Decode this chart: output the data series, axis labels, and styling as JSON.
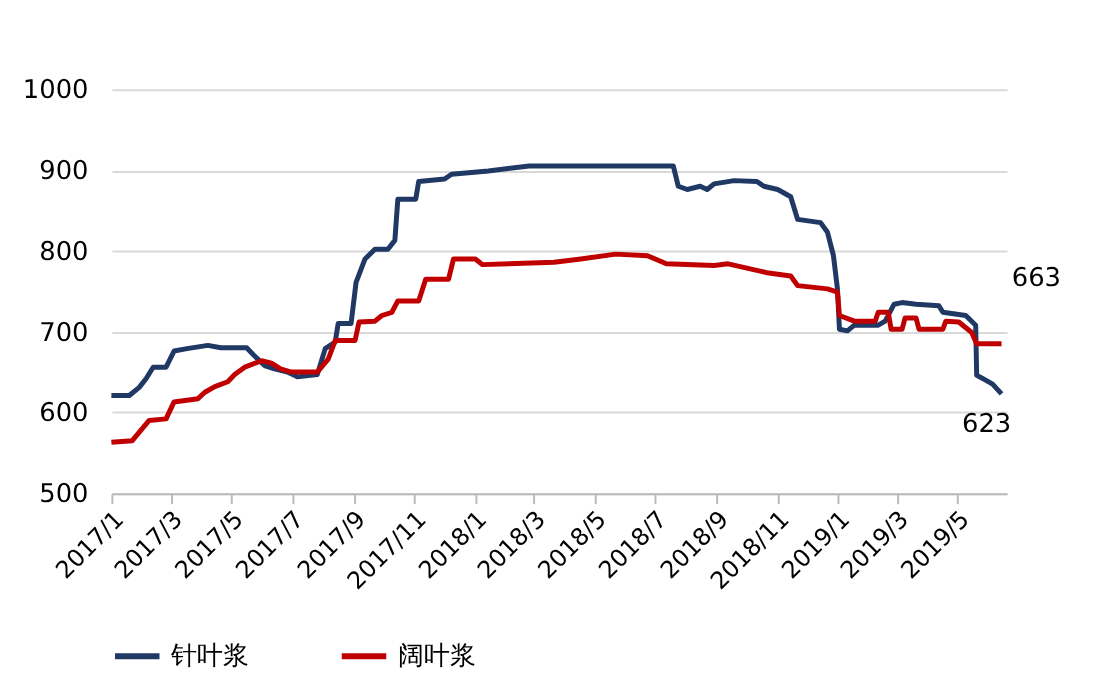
{
  "chart_data": {
    "type": "line",
    "x": [
      "2017-01-01",
      "2017-01-19",
      "2017-01-29",
      "2017-02-05",
      "2017-02-12",
      "2017-02-25",
      "2017-03-05",
      "2017-03-18",
      "2017-04-08",
      "2017-04-21",
      "2017-05-17",
      "2017-05-24",
      "2017-06-04",
      "2017-06-14",
      "2017-06-27",
      "2017-07-07",
      "2017-07-27",
      "2017-08-04",
      "2017-08-14",
      "2017-08-17",
      "2017-08-30",
      "2017-09-04",
      "2017-09-13",
      "2017-09-23",
      "2017-10-06",
      "2017-10-13",
      "2017-10-16",
      "2017-11-03",
      "2017-11-06",
      "2017-12-02",
      "2017-12-09",
      "2018-01-15",
      "2018-02-25",
      "2018-07-20",
      "2018-07-25",
      "2018-08-03",
      "2018-08-16",
      "2018-08-23",
      "2018-08-30",
      "2018-09-19",
      "2018-10-12",
      "2018-10-19",
      "2018-11-02",
      "2018-11-15",
      "2018-11-22",
      "2018-12-15",
      "2018-12-22",
      "2018-12-28",
      "2019-01-01",
      "2019-01-03",
      "2019-01-11",
      "2019-01-18",
      "2019-02-11",
      "2019-02-18",
      "2019-02-27",
      "2019-03-07",
      "2019-03-21",
      "2019-04-13",
      "2019-04-17",
      "2019-05-10",
      "2019-05-20",
      "2019-05-21",
      "2019-05-30",
      "2019-06-06",
      "2019-06-15"
    ],
    "series": [
      {
        "name": "针叶浆",
        "color": "#1f3864",
        "values": [
          621,
          621,
          631,
          642,
          656,
          656,
          676,
          679,
          683,
          680,
          680,
          671,
          658,
          654,
          650,
          644,
          647,
          679,
          687,
          710,
          710,
          761,
          790,
          802,
          802,
          813,
          864,
          864,
          886,
          889,
          895,
          899,
          905,
          905,
          880,
          876,
          880,
          876,
          883,
          887,
          886,
          880,
          876,
          867,
          839,
          835,
          823,
          794,
          753,
          703,
          701,
          708,
          708,
          713,
          734,
          736,
          734,
          732,
          724,
          720,
          708,
          646,
          640,
          635,
          623
        ]
      },
      {
        "name": "阔叶浆",
        "color": "#c00000",
        "x": [
          "2017-01-01",
          "2017-01-22",
          "2017-02-01",
          "2017-02-08",
          "2017-02-25",
          "2017-03-05",
          "2017-03-29",
          "2017-04-05",
          "2017-04-15",
          "2017-04-28",
          "2017-05-05",
          "2017-05-15",
          "2017-06-01",
          "2017-06-11",
          "2017-06-20",
          "2017-07-01",
          "2017-07-27",
          "2017-08-07",
          "2017-08-14",
          "2017-09-03",
          "2017-09-07",
          "2017-09-23",
          "2017-09-30",
          "2017-10-10",
          "2017-10-16",
          "2017-11-06",
          "2017-11-13",
          "2017-12-06",
          "2017-12-11",
          "2018-01-02",
          "2018-01-09",
          "2018-03-22",
          "2018-04-18",
          "2018-05-23",
          "2018-06-24",
          "2018-07-13",
          "2018-08-30",
          "2018-09-13",
          "2018-10-22",
          "2018-11-15",
          "2018-11-22",
          "2018-12-22",
          "2019-01-01",
          "2019-01-03",
          "2019-01-18",
          "2019-02-08",
          "2019-02-11",
          "2019-02-21",
          "2019-02-24",
          "2019-03-07",
          "2019-03-10",
          "2019-03-21",
          "2019-03-24",
          "2019-04-17",
          "2019-04-20",
          "2019-05-03",
          "2019-05-16",
          "2019-05-21",
          "2019-06-15"
        ],
        "values": [
          563,
          565,
          580,
          590,
          592,
          613,
          617,
          625,
          632,
          638,
          647,
          656,
          664,
          661,
          654,
          650,
          650,
          666,
          689,
          689,
          712,
          713,
          720,
          724,
          738,
          738,
          765,
          765,
          790,
          790,
          783,
          786,
          790,
          796,
          794,
          784,
          782,
          784,
          773,
          769,
          757,
          753,
          749,
          720,
          713,
          713,
          724,
          724,
          703,
          703,
          717,
          717,
          703,
          703,
          713,
          712,
          699,
          685,
          685
        ]
      }
    ],
    "xlim": [
      "2017-01-01",
      "2019-06-20"
    ],
    "xticks": [
      {
        "value": "2017-01",
        "label": "2017/1"
      },
      {
        "value": "2017-03",
        "label": "2017/3"
      },
      {
        "value": "2017-05",
        "label": "2017/5"
      },
      {
        "value": "2017-07",
        "label": "2017/7"
      },
      {
        "value": "2017-09",
        "label": "2017/9"
      },
      {
        "value": "2017-11",
        "label": "2017/11"
      },
      {
        "value": "2018-01",
        "label": "2018/1"
      },
      {
        "value": "2018-03",
        "label": "2018/3"
      },
      {
        "value": "2018-05",
        "label": "2018/5"
      },
      {
        "value": "2018-07",
        "label": "2018/7"
      },
      {
        "value": "2018-09",
        "label": "2018/9"
      },
      {
        "value": "2018-11",
        "label": "2018/11"
      },
      {
        "value": "2019-01",
        "label": "2019/1"
      },
      {
        "value": "2019-03",
        "label": "2019/3"
      },
      {
        "value": "2019-05",
        "label": "2019/5"
      }
    ],
    "ylim": [
      500,
      1000
    ],
    "yticks": [
      500,
      600,
      700,
      800,
      900,
      1000
    ],
    "grid": "y",
    "legend": "bottom",
    "line_style": "solid",
    "annotations": [
      "663",
      "623"
    ]
  }
}
